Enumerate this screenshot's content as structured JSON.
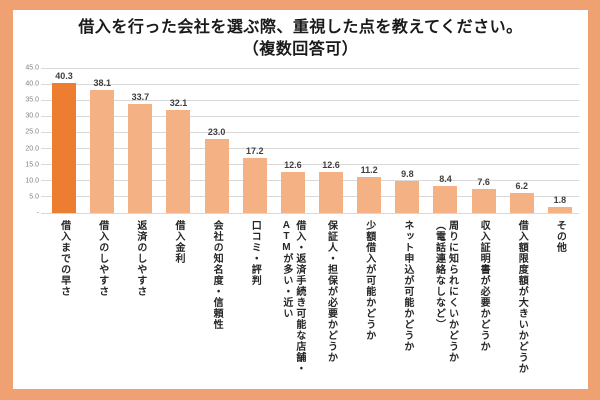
{
  "title": {
    "line1": "借入を行った会社を選ぶ際、重視した点を教えてください。",
    "line2": "（複数回答可）"
  },
  "colors": {
    "frame": "#F0A172",
    "background": "#FFFFFF",
    "bar": "#F4B183",
    "bar_highlight": "#ED7D31",
    "gridline": "#D9D9D9",
    "axis_label": "#808080",
    "value_label": "#404040",
    "category_label": "#262626"
  },
  "chart_data": {
    "type": "bar",
    "title": "借入を行った会社を選ぶ際、重視した点を教えてください。（複数回答可）",
    "categories": [
      "借入までの早さ",
      "借入のしやすさ",
      "返済のしやすさ",
      "借入金利",
      "会社の知名度・信頼性",
      "口コミ・評判",
      "借入・返済手続き可能な店舗・\nATMが多い・近い",
      "保証人・担保が必要かどうか",
      "少額借入が可能かどうか",
      "ネット申込が可能かどうか",
      "周りに知られにくいかどうか\n（電話連絡なしなど）",
      "収入証明書が必要かどうか",
      "借入額限度額が大きいかどうか",
      "その他"
    ],
    "values": [
      40.3,
      38.1,
      33.7,
      32.1,
      23.0,
      17.2,
      12.6,
      12.6,
      11.2,
      9.8,
      8.4,
      7.6,
      6.2,
      1.8
    ],
    "value_labels": [
      "40.3",
      "38.1",
      "33.7",
      "32.1",
      "23.0",
      "17.2",
      "12.6",
      "12.6",
      "11.2",
      "9.8",
      "8.4",
      "7.6",
      "6.2",
      "1.8"
    ],
    "highlight_index": 0,
    "xlabel": "",
    "ylabel": "",
    "ylim": [
      0,
      45
    ],
    "ytick_values": [
      45,
      40,
      35,
      30,
      25,
      20,
      15,
      10,
      5,
      0
    ],
    "yticks": [
      "45.0",
      "40.0",
      "35.0",
      "30.0",
      "25.0",
      "20.0",
      "15.0",
      "10.0",
      "5.0",
      "-"
    ],
    "grid": true,
    "legend": null
  }
}
